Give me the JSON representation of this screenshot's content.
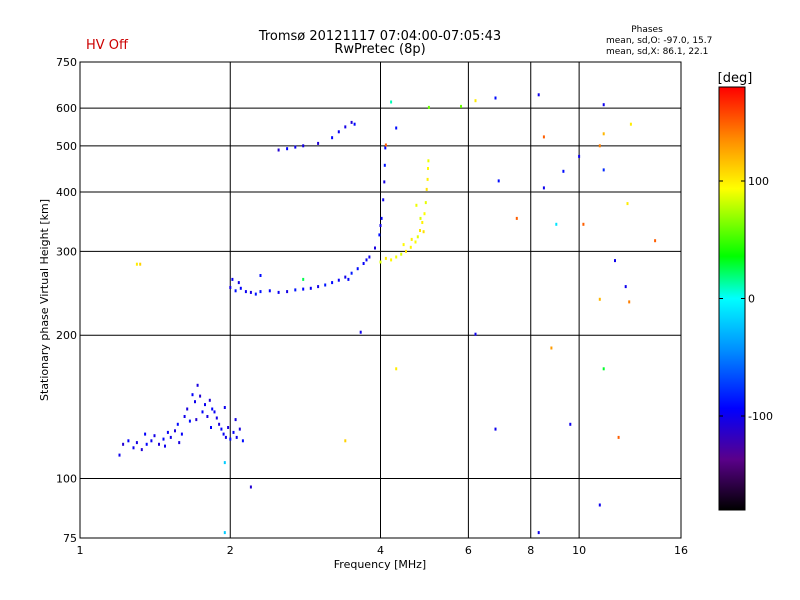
{
  "chart_data": {
    "type": "scatter",
    "title_line1": "Tromsø 20121117 07:04:00-07:05:43",
    "title_line2": "RwPretec (8p)",
    "status_label": "HV Off",
    "xlabel": "Frequency [MHz]",
    "ylabel": "Stationary phase Virtual Height [km]",
    "x_scale": "log",
    "y_scale": "log",
    "xlim": [
      1,
      16
    ],
    "ylim": [
      75,
      750
    ],
    "x_ticks": [
      1,
      2,
      4,
      6,
      8,
      10,
      16
    ],
    "x_tick_labels": [
      "1",
      "2",
      "4",
      "6",
      "8",
      "10",
      "16"
    ],
    "y_ticks": [
      75,
      100,
      200,
      300,
      400,
      500,
      600,
      750
    ],
    "y_tick_labels": [
      "75",
      "100",
      "200",
      "300",
      "400",
      "500",
      "600",
      "750"
    ],
    "grid": true,
    "legend": {
      "heading": "Phases",
      "lines": [
        "mean, sd,O: -97.0, 15.7",
        "mean, sd,X:  86.1, 22.1"
      ]
    },
    "colorbar": {
      "label": "[deg]",
      "range": [
        -180,
        180
      ],
      "ticks": [
        100,
        0,
        -100
      ],
      "tick_labels": [
        "100",
        "0",
        "-100"
      ]
    },
    "series": [
      {
        "id": "e-layer-trace",
        "phase": -100,
        "points": [
          [
            1.22,
            118
          ],
          [
            1.25,
            120
          ],
          [
            1.28,
            116
          ],
          [
            1.3,
            119
          ],
          [
            1.33,
            115
          ],
          [
            1.36,
            118
          ],
          [
            1.39,
            120
          ],
          [
            1.41,
            123
          ],
          [
            1.44,
            118
          ],
          [
            1.47,
            121
          ],
          [
            1.5,
            125
          ],
          [
            1.52,
            122
          ],
          [
            1.55,
            126
          ],
          [
            1.57,
            130
          ],
          [
            1.6,
            124
          ],
          [
            1.62,
            135
          ],
          [
            1.64,
            140
          ],
          [
            1.66,
            132
          ],
          [
            1.68,
            150
          ],
          [
            1.7,
            145
          ],
          [
            1.72,
            157
          ],
          [
            1.74,
            149
          ],
          [
            1.76,
            138
          ],
          [
            1.78,
            143
          ],
          [
            1.8,
            135
          ],
          [
            1.82,
            146
          ],
          [
            1.84,
            140
          ],
          [
            1.86,
            138
          ],
          [
            1.88,
            134
          ],
          [
            1.9,
            130
          ],
          [
            1.92,
            127
          ],
          [
            1.94,
            124
          ],
          [
            1.96,
            122
          ],
          [
            1.98,
            128
          ],
          [
            2.0,
            121
          ],
          [
            2.03,
            125
          ],
          [
            2.06,
            122
          ],
          [
            2.09,
            127
          ],
          [
            2.12,
            120
          ],
          [
            1.35,
            124
          ],
          [
            1.48,
            117
          ],
          [
            1.58,
            119
          ],
          [
            1.71,
            133
          ],
          [
            1.83,
            128
          ],
          [
            1.95,
            141
          ],
          [
            2.05,
            133
          ]
        ]
      },
      {
        "id": "f-layer-low-trace",
        "phase": -95,
        "points": [
          [
            2.0,
            252
          ],
          [
            2.05,
            248
          ],
          [
            2.1,
            251
          ],
          [
            2.15,
            247
          ],
          [
            2.2,
            246
          ],
          [
            2.3,
            247
          ],
          [
            2.4,
            248
          ],
          [
            2.5,
            246
          ],
          [
            2.6,
            247
          ],
          [
            2.7,
            249
          ],
          [
            2.8,
            250
          ],
          [
            2.9,
            251
          ],
          [
            3.0,
            253
          ],
          [
            3.1,
            255
          ],
          [
            3.2,
            258
          ],
          [
            3.3,
            261
          ],
          [
            3.4,
            265
          ],
          [
            3.5,
            270
          ],
          [
            3.6,
            276
          ],
          [
            3.7,
            283
          ],
          [
            3.8,
            292
          ],
          [
            3.9,
            305
          ],
          [
            3.98,
            325
          ],
          [
            4.02,
            352
          ],
          [
            4.05,
            385
          ],
          [
            4.07,
            420
          ],
          [
            4.08,
            455
          ],
          [
            4.09,
            495
          ],
          [
            2.02,
            262
          ],
          [
            2.08,
            258
          ],
          [
            2.25,
            244
          ],
          [
            3.45,
            262
          ],
          [
            3.75,
            288
          ],
          [
            4.0,
            340
          ]
        ]
      },
      {
        "id": "f-layer-x-trace",
        "phase": 95,
        "points": [
          [
            4.0,
            285
          ],
          [
            4.1,
            290
          ],
          [
            4.2,
            288
          ],
          [
            4.3,
            292
          ],
          [
            4.4,
            296
          ],
          [
            4.5,
            300
          ],
          [
            4.6,
            306
          ],
          [
            4.7,
            314
          ],
          [
            4.75,
            322
          ],
          [
            4.8,
            332
          ],
          [
            4.85,
            345
          ],
          [
            4.9,
            360
          ],
          [
            4.93,
            380
          ],
          [
            4.95,
            405
          ],
          [
            4.97,
            425
          ],
          [
            4.98,
            448
          ],
          [
            4.99,
            465
          ],
          [
            4.88,
            330
          ],
          [
            4.62,
            318
          ],
          [
            4.45,
            310
          ],
          [
            4.72,
            375
          ],
          [
            4.81,
            352
          ]
        ]
      },
      {
        "id": "upper-f-trace",
        "phase": -100,
        "points": [
          [
            2.5,
            490
          ],
          [
            2.6,
            493
          ],
          [
            2.7,
            497
          ],
          [
            2.8,
            500
          ],
          [
            3.0,
            506
          ],
          [
            3.2,
            520
          ],
          [
            3.3,
            535
          ],
          [
            3.4,
            548
          ],
          [
            3.5,
            560
          ],
          [
            3.55,
            555
          ]
        ]
      },
      {
        "id": "scattered-points",
        "phase": 0,
        "points": [
          [
            1.2,
            112,
            -100
          ],
          [
            1.32,
            282,
            110
          ],
          [
            2.3,
            267,
            -90
          ],
          [
            2.8,
            262,
            25
          ],
          [
            3.65,
            203,
            -100
          ],
          [
            3.4,
            120,
            110
          ],
          [
            4.3,
            170,
            100
          ],
          [
            4.2,
            618,
            10
          ],
          [
            4.3,
            545,
            -90
          ],
          [
            4.1,
            502,
            150
          ],
          [
            5.0,
            602,
            60
          ],
          [
            6.2,
            201,
            -100
          ],
          [
            6.8,
            630,
            -90
          ],
          [
            6.9,
            422,
            -90
          ],
          [
            6.8,
            127,
            -100
          ],
          [
            7.5,
            352,
            150
          ],
          [
            8.3,
            640,
            -100
          ],
          [
            8.5,
            522,
            150
          ],
          [
            8.5,
            408,
            -100
          ],
          [
            8.8,
            188,
            130
          ],
          [
            9.0,
            342,
            -10
          ],
          [
            9.3,
            442,
            -90
          ],
          [
            9.6,
            130,
            -100
          ],
          [
            10.0,
            475,
            -100
          ],
          [
            10.2,
            342,
            150
          ],
          [
            11.2,
            610,
            -100
          ],
          [
            11.2,
            530,
            120
          ],
          [
            11.0,
            500,
            140
          ],
          [
            11.2,
            445,
            -80
          ],
          [
            11.0,
            238,
            120
          ],
          [
            11.2,
            170,
            30
          ],
          [
            11.8,
            287,
            -100
          ],
          [
            12.0,
            122,
            150
          ],
          [
            12.4,
            253,
            -100
          ],
          [
            12.6,
            235,
            140
          ],
          [
            12.5,
            378,
            100
          ],
          [
            12.7,
            555,
            100
          ],
          [
            14.2,
            316,
            150
          ],
          [
            11.0,
            88,
            -100
          ],
          [
            8.3,
            77,
            -100
          ],
          [
            1.95,
            77,
            -20
          ],
          [
            2.2,
            96,
            -110
          ],
          [
            1.95,
            108,
            -20
          ],
          [
            1.3,
            282,
            100
          ],
          [
            5.8,
            605,
            60
          ],
          [
            6.2,
            622,
            100
          ]
        ]
      }
    ]
  }
}
